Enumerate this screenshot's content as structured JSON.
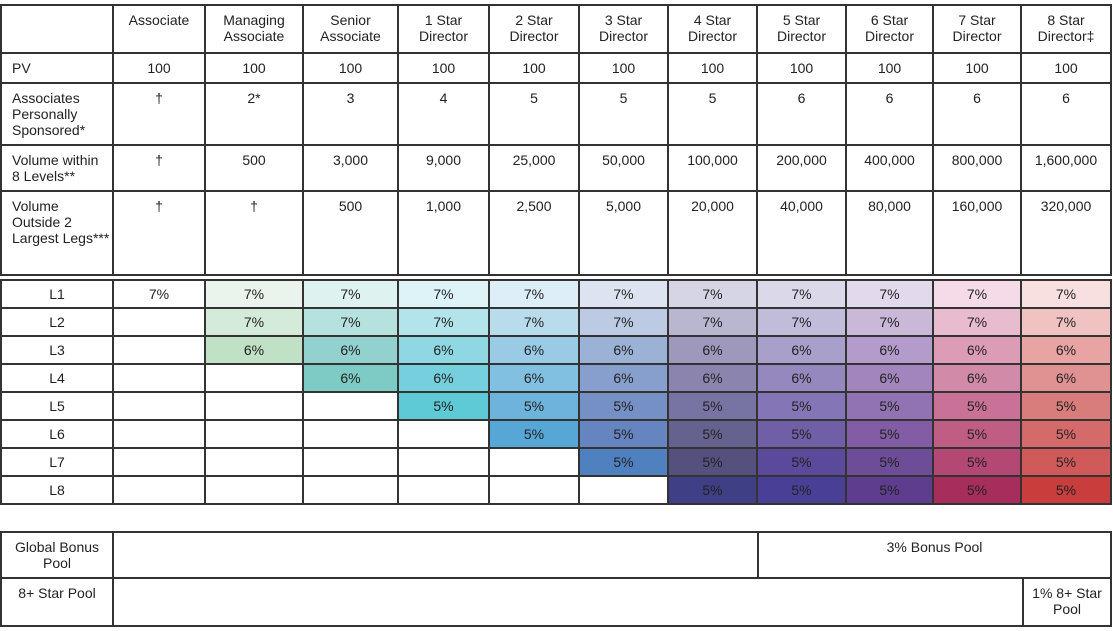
{
  "header": {
    "columns": [
      "Associate",
      "Managing Associate",
      "Senior Associate",
      "1 Star Director",
      "2 Star Director",
      "3 Star Director",
      "4 Star Director",
      "5 Star Director",
      "6 Star Director",
      "7 Star Director",
      "8 Star Director‡"
    ]
  },
  "requirements": [
    {
      "label": "PV",
      "values": [
        "100",
        "100",
        "100",
        "100",
        "100",
        "100",
        "100",
        "100",
        "100",
        "100",
        "100"
      ]
    },
    {
      "label": "Associates Personally Sponsored*",
      "values": [
        "†",
        "2*",
        "3",
        "4",
        "5",
        "5",
        "5",
        "6",
        "6",
        "6",
        "6"
      ]
    },
    {
      "label": "Volume within 8 Levels**",
      "values": [
        "†",
        "500",
        "3,000",
        "9,000",
        "25,000",
        "50,000",
        "100,000",
        "200,000",
        "400,000",
        "800,000",
        "1,600,000"
      ]
    },
    {
      "label": "Volume Outside 2 Largest Legs***",
      "values": [
        "†",
        "†",
        "500",
        "1,000",
        "2,500",
        "5,000",
        "20,000",
        "40,000",
        "80,000",
        "160,000",
        "320,000"
      ]
    }
  ],
  "levels": [
    {
      "label": "L1",
      "values": [
        "7%",
        "7%",
        "7%",
        "7%",
        "7%",
        "7%",
        "7%",
        "7%",
        "7%",
        "7%",
        "7%"
      ]
    },
    {
      "label": "L2",
      "values": [
        "",
        "7%",
        "7%",
        "7%",
        "7%",
        "7%",
        "7%",
        "7%",
        "7%",
        "7%",
        "7%"
      ]
    },
    {
      "label": "L3",
      "values": [
        "",
        "6%",
        "6%",
        "6%",
        "6%",
        "6%",
        "6%",
        "6%",
        "6%",
        "6%",
        "6%"
      ]
    },
    {
      "label": "L4",
      "values": [
        "",
        "",
        "6%",
        "6%",
        "6%",
        "6%",
        "6%",
        "6%",
        "6%",
        "6%",
        "6%"
      ]
    },
    {
      "label": "L5",
      "values": [
        "",
        "",
        "",
        "5%",
        "5%",
        "5%",
        "5%",
        "5%",
        "5%",
        "5%",
        "5%"
      ]
    },
    {
      "label": "L6",
      "values": [
        "",
        "",
        "",
        "",
        "5%",
        "5%",
        "5%",
        "5%",
        "5%",
        "5%",
        "5%"
      ]
    },
    {
      "label": "L7",
      "values": [
        "",
        "",
        "",
        "",
        "",
        "5%",
        "5%",
        "5%",
        "5%",
        "5%",
        "5%"
      ]
    },
    {
      "label": "L8",
      "values": [
        "",
        "",
        "",
        "",
        "",
        "",
        "5%",
        "5%",
        "5%",
        "5%",
        "5%"
      ]
    }
  ],
  "colors": [
    [
      "#ffffff",
      "#ebf4ec",
      "#def2ef",
      "#ddf3f7",
      "#deeef8",
      "#dde4f1",
      "#d6d5e5",
      "#dbd8ea",
      "#e3d9ec",
      "#f4dbe7",
      "#f8e0e0"
    ],
    [
      "#ffffff",
      "#d5ebd9",
      "#b5e1de",
      "#b4e4eb",
      "#b9dced",
      "#bccae3",
      "#b9b6cf",
      "#c2bcdb",
      "#c9b8d8",
      "#e8bcce",
      "#f0c2c2"
    ],
    [
      "#ffffff",
      "#c0e1c5",
      "#92d1cd",
      "#8fd7e2",
      "#99cbe6",
      "#9cb1d6",
      "#9d98bc",
      "#a99fcb",
      "#b39ccb",
      "#dc9cb6",
      "#e8a3a3"
    ],
    [
      "#ffffff",
      "#ffffff",
      "#7ecac5",
      "#75cfdd",
      "#82c0e1",
      "#879fcc",
      "#8a84ae",
      "#9488be",
      "#a185bc",
      "#d18aa8",
      "#e09292"
    ],
    [
      "#ffffff",
      "#ffffff",
      "#ffffff",
      "#5ecad6",
      "#6eb3dc",
      "#7490c5",
      "#7773a2",
      "#8475b6",
      "#9172b2",
      "#c97196",
      "#d97c7c"
    ],
    [
      "#ffffff",
      "#ffffff",
      "#ffffff",
      "#ffffff",
      "#57a7d6",
      "#6684bf",
      "#66628f",
      "#705ea7",
      "#825ca5",
      "#bf5d85",
      "#d46a6a"
    ],
    [
      "#ffffff",
      "#ffffff",
      "#ffffff",
      "#ffffff",
      "#ffffff",
      "#4f80c0",
      "#55507e",
      "#5b499b",
      "#6e4d98",
      "#b34875",
      "#d05a5a"
    ],
    [
      "#ffffff",
      "#ffffff",
      "#ffffff",
      "#ffffff",
      "#ffffff",
      "#ffffff",
      "#3e3f84",
      "#4a3f96",
      "#5e3d8e",
      "#a72d5c",
      "#c93d3d"
    ]
  ],
  "pools": [
    {
      "label": "Global Bonus Pool",
      "value": "3% Bonus Pool"
    },
    {
      "label": "8+ Star Pool",
      "value": "1% 8+ Star Pool"
    }
  ]
}
